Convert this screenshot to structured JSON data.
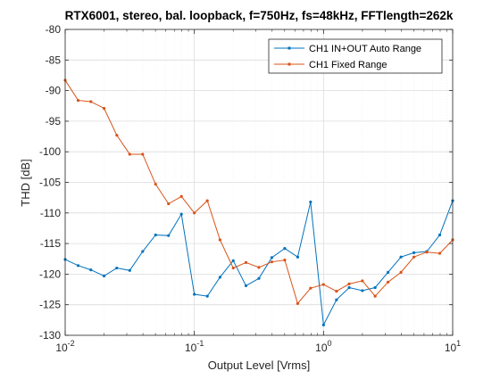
{
  "chart_data": {
    "type": "line",
    "title": "RTX6001, stereo, bal. loopback, f=750Hz, fs=48kHz, FFTlength=262k",
    "xlabel": "Output Level [Vrms]",
    "ylabel": "THD [dB]",
    "xscale": "log",
    "xlim": [
      0.01,
      10
    ],
    "ylim": [
      -130,
      -80
    ],
    "xticks": [
      0.01,
      0.1,
      1,
      10
    ],
    "xtick_labels": [
      {
        "base": "10",
        "exp": "-2"
      },
      {
        "base": "10",
        "exp": "-1"
      },
      {
        "base": "10",
        "exp": "0"
      },
      {
        "base": "10",
        "exp": "1"
      }
    ],
    "yticks": [
      -130,
      -125,
      -120,
      -115,
      -110,
      -105,
      -100,
      -95,
      -90,
      -85,
      -80
    ],
    "ytick_labels": [
      "-130",
      "-125",
      "-120",
      "-115",
      "-110",
      "-105",
      "-100",
      "-95",
      "-90",
      "-85",
      "-80"
    ],
    "grid": true,
    "legend_position": "top-right",
    "series": [
      {
        "name": "CH1 IN+OUT Auto Range",
        "color": "#0072BD",
        "x": [
          0.01,
          0.0126,
          0.0158,
          0.02,
          0.0251,
          0.0316,
          0.0398,
          0.0501,
          0.0631,
          0.0794,
          0.1,
          0.126,
          0.158,
          0.2,
          0.251,
          0.316,
          0.398,
          0.501,
          0.631,
          0.794,
          1.0,
          1.26,
          1.58,
          2.0,
          2.51,
          3.16,
          3.98,
          5.01,
          6.31,
          7.94,
          10.0
        ],
        "y": [
          -117.6,
          -118.6,
          -119.3,
          -120.3,
          -119.0,
          -119.4,
          -116.3,
          -113.6,
          -113.7,
          -110.2,
          -123.3,
          -123.6,
          -120.5,
          -117.8,
          -121.9,
          -120.7,
          -117.3,
          -115.8,
          -117.2,
          -108.2,
          -128.3,
          -124.2,
          -122.2,
          -122.7,
          -122.2,
          -119.7,
          -117.2,
          -116.5,
          -116.3,
          -113.6,
          -108.0
        ]
      },
      {
        "name": "CH1 Fixed Range",
        "color": "#D95319",
        "x": [
          0.01,
          0.0126,
          0.0158,
          0.02,
          0.0251,
          0.0316,
          0.0398,
          0.0501,
          0.0631,
          0.0794,
          0.1,
          0.126,
          0.158,
          0.2,
          0.251,
          0.316,
          0.398,
          0.501,
          0.631,
          0.794,
          1.0,
          1.26,
          1.58,
          2.0,
          2.51,
          3.16,
          3.98,
          5.01,
          6.31,
          7.94,
          10.0
        ],
        "y": [
          -88.3,
          -91.6,
          -91.8,
          -92.9,
          -97.3,
          -100.4,
          -100.4,
          -105.3,
          -108.5,
          -107.3,
          -110.0,
          -108.0,
          -114.4,
          -119.0,
          -118.1,
          -118.9,
          -118.0,
          -117.7,
          -124.8,
          -122.3,
          -121.7,
          -122.8,
          -121.6,
          -121.1,
          -123.6,
          -121.3,
          -119.7,
          -117.2,
          -116.4,
          -116.6,
          -114.4
        ]
      }
    ]
  }
}
